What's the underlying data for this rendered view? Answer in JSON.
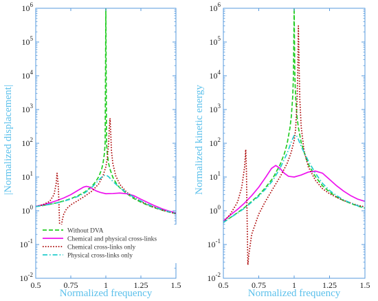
{
  "chart_data": [
    {
      "type": "line",
      "panel": "left",
      "xlabel": "Normalized  frequency",
      "ylabel": "|Normalized displacement|",
      "x_scale": "linear",
      "y_scale": "log",
      "xlim": [
        0.5,
        1.5
      ],
      "ylim": [
        0.01,
        1000000
      ],
      "x_ticks": [
        0.5,
        0.75,
        1,
        1.25,
        1.5
      ],
      "x_tick_labels": [
        "0.5",
        "0.75",
        "1",
        "1.25",
        "1.5"
      ],
      "y_ticks": [
        0.01,
        0.1,
        1,
        10,
        100,
        1000,
        10000,
        100000,
        1000000
      ],
      "y_tick_labels": [
        {
          "base": "10",
          "exp": "-2"
        },
        {
          "base": "10",
          "exp": "-1"
        },
        {
          "base": "10",
          "exp": "0"
        },
        {
          "base": "10",
          "exp": "1"
        },
        {
          "base": "10",
          "exp": "2"
        },
        {
          "base": "10",
          "exp": "3"
        },
        {
          "base": "10",
          "exp": "4"
        },
        {
          "base": "10",
          "exp": "5"
        },
        {
          "base": "10",
          "exp": "6"
        }
      ],
      "grid": false,
      "legend": {
        "placement": "bottom-left",
        "entries": [
          "Without DVA",
          "Chemical and physical cross-links",
          "Chemical cross-links only",
          "Physical cross-links only"
        ]
      },
      "series": [
        {
          "name": "Without DVA",
          "color": "#22cc22",
          "dash": "dashed",
          "x": [
            0.5,
            0.55,
            0.6,
            0.65,
            0.7,
            0.75,
            0.8,
            0.85,
            0.9,
            0.93,
            0.95,
            0.97,
            0.98,
            0.99,
            0.995,
            1.0,
            1.005,
            1.01,
            1.02,
            1.03,
            1.05,
            1.08,
            1.1,
            1.15,
            1.2,
            1.25,
            1.3,
            1.35,
            1.4,
            1.45,
            1.5
          ],
          "y": [
            1.33,
            1.43,
            1.56,
            1.72,
            1.96,
            2.29,
            2.78,
            3.6,
            5.3,
            7.5,
            10.3,
            17.0,
            25.5,
            50.5,
            100,
            1000000,
            100,
            50,
            25,
            16.9,
            9.8,
            5.9,
            4.8,
            3.2,
            2.3,
            1.8,
            1.45,
            1.22,
            1.05,
            0.92,
            0.82
          ]
        },
        {
          "name": "Chemical and physical cross-links",
          "color": "#ee11ee",
          "dash": "solid",
          "x": [
            0.5,
            0.55,
            0.6,
            0.65,
            0.7,
            0.75,
            0.8,
            0.84,
            0.86,
            0.88,
            0.9,
            0.93,
            0.96,
            1.0,
            1.05,
            1.1,
            1.15,
            1.2,
            1.25,
            1.3,
            1.35,
            1.4,
            1.45,
            1.5
          ],
          "y": [
            1.35,
            1.5,
            1.7,
            2.0,
            2.4,
            3.0,
            4.0,
            5.0,
            5.3,
            5.1,
            4.6,
            3.9,
            3.5,
            3.2,
            3.25,
            3.35,
            3.2,
            2.8,
            2.2,
            1.75,
            1.4,
            1.15,
            0.98,
            0.87
          ]
        },
        {
          "name": "Chemical cross-links only",
          "color": "#aa0000",
          "dash": "dotted",
          "x": [
            0.5,
            0.55,
            0.6,
            0.63,
            0.645,
            0.652,
            0.66,
            0.665,
            0.67,
            0.675,
            0.68,
            0.69,
            0.7,
            0.72,
            0.75,
            0.8,
            0.85,
            0.9,
            0.95,
            0.98,
            1.0,
            1.01,
            1.02,
            1.025,
            1.03,
            1.035,
            1.04,
            1.05,
            1.07,
            1.1,
            1.15,
            1.2,
            1.25,
            1.3,
            1.35,
            1.4,
            1.45,
            1.5
          ],
          "y": [
            1.33,
            1.5,
            1.9,
            3.0,
            6.0,
            13.0,
            6.0,
            2.0,
            0.4,
            0.22,
            0.3,
            0.55,
            0.8,
            1.15,
            1.5,
            2.0,
            2.7,
            3.8,
            6.3,
            11.0,
            20.0,
            35.0,
            100,
            300,
            550,
            200,
            60,
            25,
            11.0,
            6.0,
            3.5,
            2.5,
            1.9,
            1.5,
            1.25,
            1.05,
            0.92,
            0.82
          ]
        },
        {
          "name": "Physical cross-links only",
          "color": "#22cccc",
          "dash": "dashdot",
          "x": [
            0.5,
            0.55,
            0.6,
            0.65,
            0.7,
            0.75,
            0.8,
            0.85,
            0.9,
            0.95,
            0.98,
            1.0,
            1.02,
            1.05,
            1.1,
            1.15,
            1.2,
            1.25,
            1.3,
            1.35,
            1.4,
            1.45,
            1.5
          ],
          "y": [
            1.33,
            1.43,
            1.55,
            1.7,
            1.92,
            2.22,
            2.65,
            3.4,
            4.9,
            8.2,
            10.8,
            11.5,
            10.2,
            7.4,
            4.8,
            3.4,
            2.5,
            1.95,
            1.55,
            1.28,
            1.08,
            0.94,
            0.84
          ]
        }
      ]
    },
    {
      "type": "line",
      "panel": "right",
      "xlabel": "Normalized  frequency",
      "ylabel": "Normalized kinetic energy",
      "x_scale": "linear",
      "y_scale": "log",
      "xlim": [
        0.5,
        1.5
      ],
      "ylim": [
        0.01,
        1000000
      ],
      "x_ticks": [
        0.5,
        0.75,
        1,
        1.25,
        1.5
      ],
      "x_tick_labels": [
        "0.5",
        "0.75",
        "1",
        "1.25",
        "1.5"
      ],
      "y_ticks": [
        0.01,
        0.1,
        1,
        10,
        100,
        1000,
        10000,
        100000,
        1000000
      ],
      "y_tick_labels": [
        {
          "base": "10",
          "exp": "-2"
        },
        {
          "base": "10",
          "exp": "-1"
        },
        {
          "base": "10",
          "exp": "0"
        },
        {
          "base": "10",
          "exp": "1"
        },
        {
          "base": "10",
          "exp": "2"
        },
        {
          "base": "10",
          "exp": "3"
        },
        {
          "base": "10",
          "exp": "4"
        },
        {
          "base": "10",
          "exp": "5"
        },
        {
          "base": "10",
          "exp": "6"
        }
      ],
      "grid": false,
      "series": [
        {
          "name": "Without DVA",
          "color": "#22cc22",
          "dash": "dashed",
          "x": [
            0.5,
            0.55,
            0.6,
            0.65,
            0.7,
            0.75,
            0.8,
            0.85,
            0.9,
            0.93,
            0.95,
            0.97,
            0.98,
            0.99,
            0.995,
            1.0,
            1.005,
            1.01,
            1.02,
            1.03,
            1.05,
            1.08,
            1.1,
            1.15,
            1.2,
            1.25,
            1.3,
            1.35,
            1.4,
            1.45,
            1.5
          ],
          "y": [
            0.45,
            0.63,
            0.88,
            1.25,
            1.9,
            2.9,
            5.0,
            9.3,
            23.0,
            48.0,
            95.0,
            280,
            620,
            2500,
            10000,
            1000000,
            10000,
            2500,
            620,
            290,
            105,
            40,
            24,
            10.3,
            5.5,
            3.6,
            2.55,
            2.0,
            1.65,
            1.38,
            1.2
          ]
        },
        {
          "name": "Chemical and physical cross-links",
          "color": "#ee11ee",
          "dash": "solid",
          "x": [
            0.5,
            0.55,
            0.6,
            0.65,
            0.7,
            0.75,
            0.8,
            0.84,
            0.87,
            0.9,
            0.93,
            0.96,
            1.0,
            1.05,
            1.1,
            1.15,
            1.2,
            1.25,
            1.3,
            1.35,
            1.4,
            1.45,
            1.5
          ],
          "y": [
            0.5,
            0.75,
            1.1,
            1.7,
            2.8,
            5.0,
            10.0,
            18.0,
            22.0,
            18.0,
            13.0,
            10.5,
            10.0,
            11.5,
            14.0,
            15.0,
            13.0,
            8.5,
            5.5,
            3.8,
            2.8,
            2.2,
            1.9
          ]
        },
        {
          "name": "Chemical cross-links only",
          "color": "#aa0000",
          "dash": "dotted",
          "x": [
            0.5,
            0.55,
            0.6,
            0.63,
            0.65,
            0.658,
            0.663,
            0.668,
            0.673,
            0.68,
            0.7,
            0.75,
            0.8,
            0.85,
            0.9,
            0.95,
            0.98,
            1.0,
            1.01,
            1.02,
            1.025,
            1.03,
            1.035,
            1.04,
            1.05,
            1.07,
            1.1,
            1.15,
            1.2,
            1.25,
            1.3,
            1.35,
            1.4,
            1.45,
            1.5
          ],
          "y": [
            0.45,
            0.8,
            1.8,
            5.0,
            20.0,
            65.0,
            15.0,
            0.5,
            0.025,
            0.05,
            0.2,
            0.8,
            2.0,
            4.5,
            10.0,
            25.0,
            55.0,
            120,
            250,
            1500,
            10000,
            300000,
            20000,
            2000,
            300,
            60,
            20.0,
            8.0,
            4.5,
            3.2,
            2.5,
            2.0,
            1.7,
            1.45,
            1.3
          ]
        },
        {
          "name": "Physical cross-links only",
          "color": "#22cccc",
          "dash": "dashdot",
          "x": [
            0.5,
            0.55,
            0.6,
            0.65,
            0.7,
            0.75,
            0.8,
            0.85,
            0.9,
            0.95,
            0.98,
            1.0,
            1.02,
            1.03,
            1.05,
            1.1,
            1.15,
            1.2,
            1.25,
            1.3,
            1.35,
            1.4,
            1.45,
            1.5
          ],
          "y": [
            0.45,
            0.63,
            0.85,
            1.2,
            1.8,
            2.7,
            4.5,
            8.0,
            18.0,
            50.0,
            110,
            170,
            160,
            130,
            80,
            30,
            13.0,
            6.5,
            4.0,
            2.8,
            2.1,
            1.7,
            1.4,
            1.2
          ]
        }
      ]
    }
  ]
}
